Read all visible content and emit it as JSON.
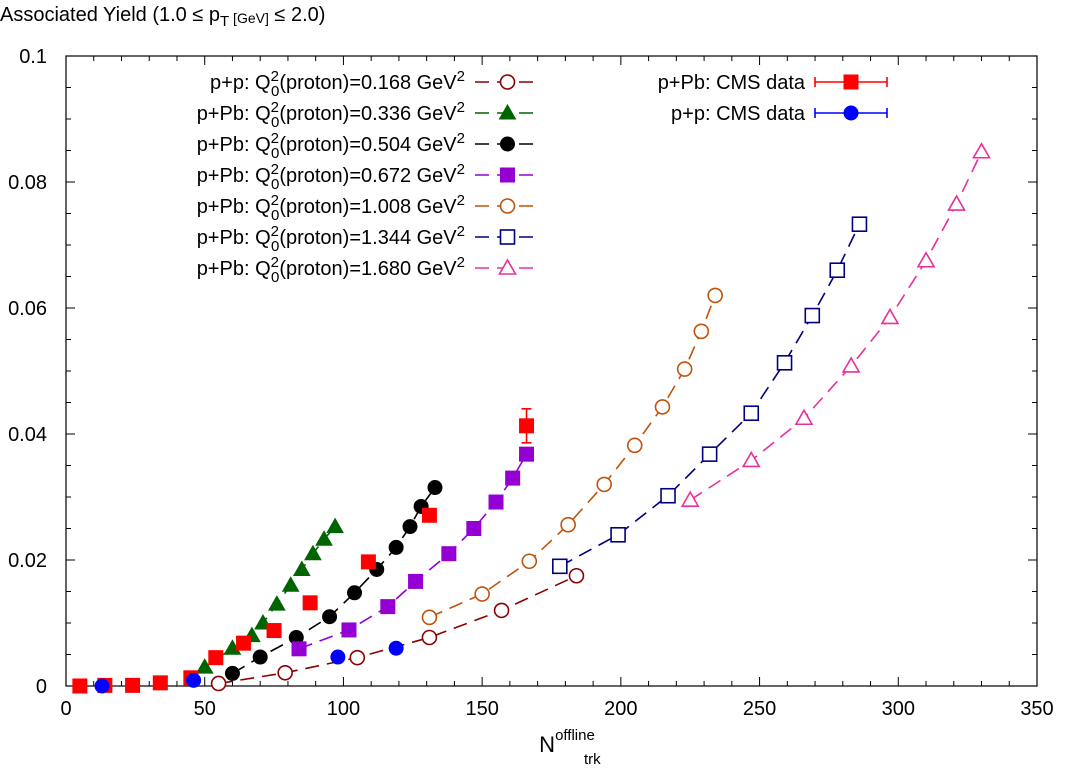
{
  "chart_data": {
    "type": "scatter",
    "title": {
      "prefix": "Associated Yield (1.0 ≤ p",
      "sub": "T",
      "mid": " [GeV]",
      "suffix": " ≤ 2.0)"
    },
    "xlabel": {
      "base": "N",
      "sup": "offline",
      "sub": "trk"
    },
    "ylabel": "",
    "xlim": [
      0,
      350
    ],
    "ylim": [
      0,
      0.1
    ],
    "xticks": [
      "0",
      "50",
      "100",
      "150",
      "200",
      "250",
      "300",
      "350"
    ],
    "yticks": [
      "0",
      "0.02",
      "0.04",
      "0.06",
      "0.08",
      "0.1"
    ],
    "grid": false,
    "legend_position": "top-left and top-center",
    "series": [
      {
        "id": "pp-0168",
        "label": {
          "pre": "p+p: Q",
          "sup": "2",
          "sub": "0",
          "post": "(proton)=0.168 GeV",
          "post_sup": "2"
        },
        "color": "#8b0000",
        "marker": "open-circle",
        "dashed": true,
        "points": [
          [
            55,
            0.0004
          ],
          [
            79,
            0.0021
          ],
          [
            105,
            0.0045
          ],
          [
            131,
            0.0077
          ],
          [
            157,
            0.012
          ],
          [
            184,
            0.0175
          ]
        ]
      },
      {
        "id": "ppb-0336",
        "label": {
          "pre": "p+Pb: Q",
          "sup": "2",
          "sub": "0",
          "post": "(proton)=0.336 GeV",
          "post_sup": "2"
        },
        "color": "#006400",
        "marker": "filled-triangle",
        "dashed": true,
        "points": [
          [
            50,
            0.003
          ],
          [
            60,
            0.006
          ],
          [
            67,
            0.008
          ],
          [
            71,
            0.01
          ],
          [
            76,
            0.013
          ],
          [
            81,
            0.016
          ],
          [
            85,
            0.0185
          ],
          [
            89,
            0.021
          ],
          [
            93,
            0.0233
          ],
          [
            97,
            0.0253
          ]
        ]
      },
      {
        "id": "ppb-0504",
        "label": {
          "pre": "p+Pb: Q",
          "sup": "2",
          "sub": "0",
          "post": "(proton)=0.504 GeV",
          "post_sup": "2"
        },
        "color": "#000000",
        "marker": "filled-circle",
        "dashed": true,
        "points": [
          [
            60,
            0.002
          ],
          [
            70,
            0.0046
          ],
          [
            83,
            0.0077
          ],
          [
            95,
            0.011
          ],
          [
            104,
            0.0148
          ],
          [
            112,
            0.0185
          ],
          [
            119,
            0.022
          ],
          [
            124,
            0.0253
          ],
          [
            128,
            0.0285
          ],
          [
            133,
            0.0315
          ]
        ]
      },
      {
        "id": "ppb-0672",
        "label": {
          "pre": "p+Pb: Q",
          "sup": "2",
          "sub": "0",
          "post": "(proton)=0.672 GeV",
          "post_sup": "2"
        },
        "color": "#9400d3",
        "marker": "filled-square",
        "dashed": true,
        "points": [
          [
            84,
            0.0059
          ],
          [
            102,
            0.0089
          ],
          [
            116,
            0.0126
          ],
          [
            126,
            0.0166
          ],
          [
            138,
            0.021
          ],
          [
            147,
            0.025
          ],
          [
            155,
            0.0292
          ],
          [
            161,
            0.033
          ],
          [
            166,
            0.0368
          ]
        ]
      },
      {
        "id": "ppb-1008",
        "label": {
          "pre": "p+Pb: Q",
          "sup": "2",
          "sub": "0",
          "post": "(proton)=1.008 GeV",
          "post_sup": "2"
        },
        "color": "#c0520a",
        "marker": "open-circle",
        "dashed": true,
        "points": [
          [
            131,
            0.0109
          ],
          [
            150,
            0.0146
          ],
          [
            167,
            0.0198
          ],
          [
            181,
            0.0256
          ],
          [
            194,
            0.032
          ],
          [
            205,
            0.0382
          ],
          [
            215,
            0.0443
          ],
          [
            223,
            0.0503
          ],
          [
            229,
            0.0563
          ],
          [
            234,
            0.062
          ]
        ]
      },
      {
        "id": "ppb-1344",
        "label": {
          "pre": "p+Pb: Q",
          "sup": "2",
          "sub": "0",
          "post": "(proton)=1.344 GeV",
          "post_sup": "2"
        },
        "color": "#000080",
        "marker": "open-square",
        "dashed": true,
        "points": [
          [
            178,
            0.019
          ],
          [
            199,
            0.024
          ],
          [
            217,
            0.0302
          ],
          [
            232,
            0.0368
          ],
          [
            247,
            0.0433
          ],
          [
            259,
            0.0513
          ],
          [
            269,
            0.0588
          ],
          [
            278,
            0.066
          ],
          [
            286,
            0.0733
          ]
        ]
      },
      {
        "id": "ppb-1680",
        "label": {
          "pre": "p+Pb: Q",
          "sup": "2",
          "sub": "0",
          "post": "(proton)=1.680 GeV",
          "post_sup": "2"
        },
        "color": "#e8309a",
        "marker": "open-triangle",
        "dashed": true,
        "points": [
          [
            225,
            0.0295
          ],
          [
            247,
            0.0358
          ],
          [
            266,
            0.0425
          ],
          [
            283,
            0.0508
          ],
          [
            297,
            0.0585
          ],
          [
            310,
            0.0675
          ],
          [
            321,
            0.0765
          ],
          [
            330,
            0.0848
          ]
        ]
      },
      {
        "id": "ppb-cms",
        "label": {
          "pre": "p+Pb: CMS data"
        },
        "color": "#ff0000",
        "marker": "filled-square",
        "dashed": false,
        "points": [
          [
            5,
            0.0,
            0
          ],
          [
            14,
            0.0001,
            0
          ],
          [
            24,
            0.0001,
            0
          ],
          [
            34,
            0.0005,
            0
          ],
          [
            45,
            0.0013,
            0
          ],
          [
            54,
            0.0045,
            0
          ],
          [
            64,
            0.0068,
            0
          ],
          [
            75,
            0.0088,
            0
          ],
          [
            88,
            0.0132,
            0
          ],
          [
            109,
            0.0197,
            0
          ],
          [
            131,
            0.0271,
            0.0008
          ],
          [
            166,
            0.0413,
            0.0027
          ]
        ]
      },
      {
        "id": "pp-cms",
        "label": {
          "pre": "p+p: CMS data"
        },
        "color": "#0000ff",
        "marker": "filled-circle",
        "dashed": false,
        "points": [
          [
            13,
            0.0,
            0
          ],
          [
            46,
            0.0009,
            0
          ],
          [
            98,
            0.0046,
            0
          ],
          [
            119,
            0.006,
            0
          ]
        ]
      }
    ]
  }
}
